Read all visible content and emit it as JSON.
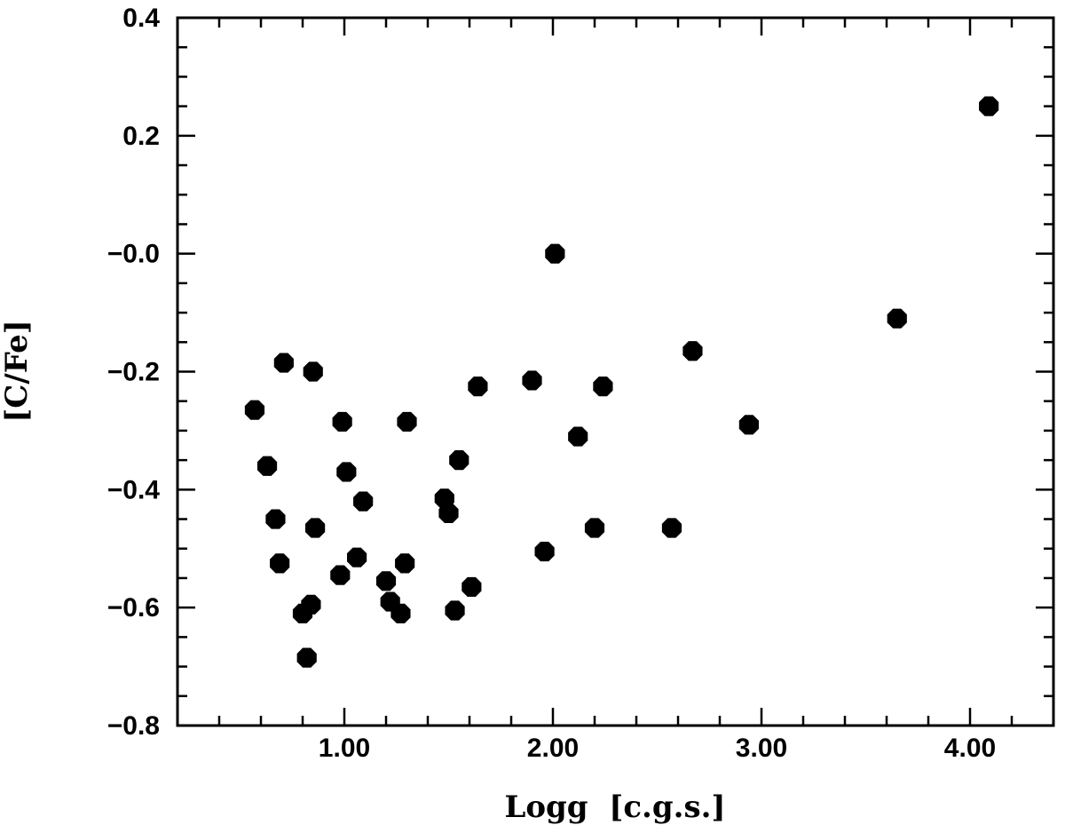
{
  "chart_data": {
    "type": "scatter",
    "title": "",
    "xlabel": "Logg  [c.g.s.]",
    "ylabel": "[C/Fe]",
    "xlim": [
      0.2,
      4.4
    ],
    "ylim": [
      -0.8,
      0.4
    ],
    "x_ticks": [
      1.0,
      2.0,
      3.0,
      4.0
    ],
    "x_tick_labels": [
      "1.00",
      "2.00",
      "3.00",
      "4.00"
    ],
    "x_minor_step": 0.2,
    "y_ticks": [
      0.4,
      0.2,
      0.0,
      -0.2,
      -0.4,
      -0.6,
      -0.8
    ],
    "y_tick_labels": [
      "0.4",
      "0.2",
      "−0.0",
      "−0.2",
      "−0.4",
      "−0.6",
      "−0.8"
    ],
    "y_minor_step": 0.05,
    "grid": false,
    "legend": "none",
    "marker": "filled-octagon",
    "color": "#000000",
    "series": [
      {
        "points": [
          {
            "x": 0.57,
            "y": -0.265
          },
          {
            "x": 0.63,
            "y": -0.36
          },
          {
            "x": 0.67,
            "y": -0.45
          },
          {
            "x": 0.69,
            "y": -0.525
          },
          {
            "x": 0.71,
            "y": -0.185
          },
          {
            "x": 0.8,
            "y": -0.61
          },
          {
            "x": 0.82,
            "y": -0.685
          },
          {
            "x": 0.84,
            "y": -0.595
          },
          {
            "x": 0.85,
            "y": -0.2
          },
          {
            "x": 0.86,
            "y": -0.465
          },
          {
            "x": 0.98,
            "y": -0.545
          },
          {
            "x": 0.99,
            "y": -0.285
          },
          {
            "x": 1.01,
            "y": -0.37
          },
          {
            "x": 1.06,
            "y": -0.515
          },
          {
            "x": 1.09,
            "y": -0.42
          },
          {
            "x": 1.2,
            "y": -0.555
          },
          {
            "x": 1.22,
            "y": -0.59
          },
          {
            "x": 1.27,
            "y": -0.61
          },
          {
            "x": 1.29,
            "y": -0.525
          },
          {
            "x": 1.3,
            "y": -0.285
          },
          {
            "x": 1.48,
            "y": -0.415
          },
          {
            "x": 1.5,
            "y": -0.44
          },
          {
            "x": 1.53,
            "y": -0.605
          },
          {
            "x": 1.55,
            "y": -0.35
          },
          {
            "x": 1.61,
            "y": -0.565
          },
          {
            "x": 1.64,
            "y": -0.225
          },
          {
            "x": 1.9,
            "y": -0.215
          },
          {
            "x": 1.96,
            "y": -0.505
          },
          {
            "x": 2.01,
            "y": 0.0
          },
          {
            "x": 2.12,
            "y": -0.31
          },
          {
            "x": 2.2,
            "y": -0.465
          },
          {
            "x": 2.24,
            "y": -0.225
          },
          {
            "x": 2.57,
            "y": -0.465
          },
          {
            "x": 2.67,
            "y": -0.165
          },
          {
            "x": 2.94,
            "y": -0.29
          },
          {
            "x": 3.65,
            "y": -0.11
          },
          {
            "x": 4.09,
            "y": 0.25
          }
        ]
      }
    ]
  }
}
